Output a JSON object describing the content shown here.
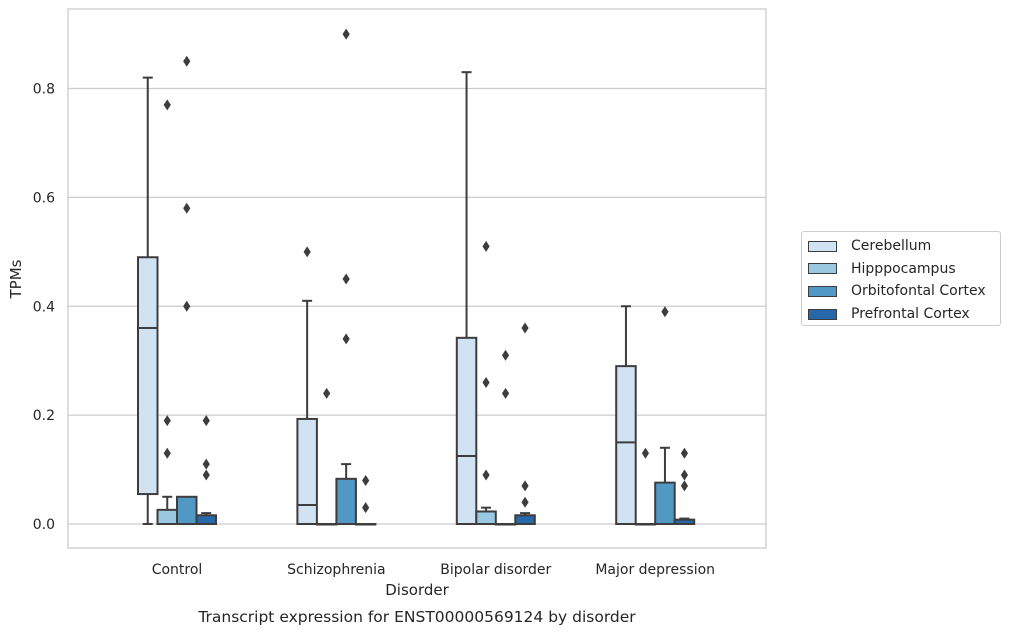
{
  "chart_data": {
    "type": "box",
    "title": "Transcript expression for ENST00000569124 by disorder",
    "xlabel": "Disorder",
    "ylabel": "TPMs",
    "ylim": [
      -0.043,
      0.95
    ],
    "yticks": [
      "0.0",
      "0.2",
      "0.4",
      "0.6",
      "0.8"
    ],
    "grid": "horizontal",
    "legend_position": "right",
    "categories": [
      "Control",
      "Schizophrenia",
      "Bipolar disorder",
      "Major depression"
    ],
    "series": [
      {
        "name": "Cerebellum",
        "color": "#d1e2f2",
        "boxes": [
          {
            "q1": 0.055,
            "median": 0.36,
            "q3": 0.49,
            "whisker_low": 0.0,
            "whisker_high": 0.82,
            "outliers": []
          },
          {
            "q1": 0.0,
            "median": 0.035,
            "q3": 0.193,
            "whisker_low": 0.0,
            "whisker_high": 0.41,
            "outliers": [
              0.5
            ]
          },
          {
            "q1": 0.0,
            "median": 0.125,
            "q3": 0.342,
            "whisker_low": 0.0,
            "whisker_high": 0.83,
            "outliers": []
          },
          {
            "q1": 0.0,
            "median": 0.15,
            "q3": 0.29,
            "whisker_low": 0.0,
            "whisker_high": 0.4,
            "outliers": []
          }
        ]
      },
      {
        "name": "Hipppocampus",
        "color": "#9ac8e0",
        "boxes": [
          {
            "q1": 0.0,
            "median": 0.0,
            "q3": 0.026,
            "whisker_low": 0.0,
            "whisker_high": 0.05,
            "outliers": [
              0.13,
              0.19,
              0.77
            ]
          },
          {
            "q1": 0.0,
            "median": 0.0,
            "q3": 0.0,
            "whisker_low": 0.0,
            "whisker_high": 0.0,
            "outliers": [
              0.24
            ]
          },
          {
            "q1": 0.0,
            "median": 0.0,
            "q3": 0.023,
            "whisker_low": 0.0,
            "whisker_high": 0.03,
            "outliers": [
              0.09,
              0.26,
              0.51
            ]
          },
          {
            "q1": 0.0,
            "median": 0.0,
            "q3": 0.0,
            "whisker_low": 0.0,
            "whisker_high": 0.0,
            "outliers": [
              0.13
            ]
          }
        ]
      },
      {
        "name": "Orbitofontal Cortex",
        "color": "#5198c5",
        "boxes": [
          {
            "q1": 0.0,
            "median": 0.0,
            "q3": 0.05,
            "whisker_low": 0.0,
            "whisker_high": 0.05,
            "outliers": [
              0.4,
              0.58,
              0.85
            ]
          },
          {
            "q1": 0.0,
            "median": 0.0,
            "q3": 0.083,
            "whisker_low": 0.0,
            "whisker_high": 0.11,
            "outliers": [
              0.34,
              0.45,
              0.9
            ]
          },
          {
            "q1": 0.0,
            "median": 0.0,
            "q3": 0.0,
            "whisker_low": 0.0,
            "whisker_high": 0.0,
            "outliers": [
              0.24,
              0.31
            ]
          },
          {
            "q1": 0.0,
            "median": 0.0,
            "q3": 0.076,
            "whisker_low": 0.0,
            "whisker_high": 0.14,
            "outliers": [
              0.39
            ]
          }
        ]
      },
      {
        "name": "Prefrontal Cortex",
        "color": "#2668aa",
        "boxes": [
          {
            "q1": 0.0,
            "median": 0.0,
            "q3": 0.016,
            "whisker_low": 0.0,
            "whisker_high": 0.02,
            "outliers": [
              0.09,
              0.11,
              0.19
            ]
          },
          {
            "q1": 0.0,
            "median": 0.0,
            "q3": 0.0,
            "whisker_low": 0.0,
            "whisker_high": 0.0,
            "outliers": [
              0.03,
              0.08
            ]
          },
          {
            "q1": 0.0,
            "median": 0.0,
            "q3": 0.016,
            "whisker_low": 0.0,
            "whisker_high": 0.02,
            "outliers": [
              0.04,
              0.07,
              0.36
            ]
          },
          {
            "q1": 0.0,
            "median": 0.0,
            "q3": 0.008,
            "whisker_low": 0.0,
            "whisker_high": 0.01,
            "outliers": [
              0.07,
              0.09,
              0.13
            ]
          }
        ]
      }
    ]
  }
}
